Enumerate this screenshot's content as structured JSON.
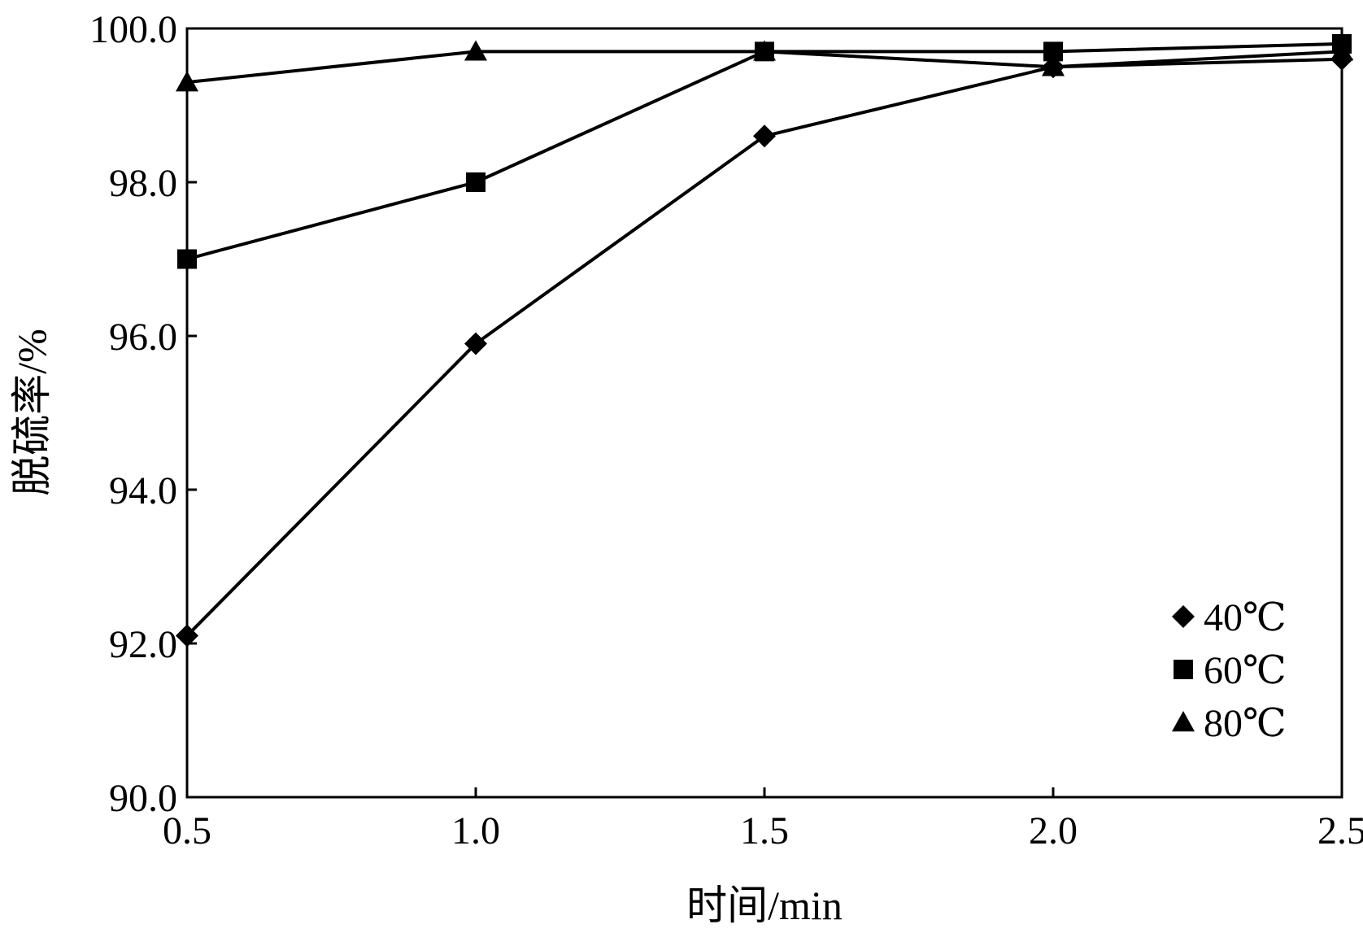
{
  "chart_data": {
    "type": "line",
    "title": "",
    "xlabel": "时间/min",
    "ylabel": "脱硫率/%",
    "xlim": [
      0.5,
      2.5
    ],
    "ylim": [
      90.0,
      100.0
    ],
    "xticks": [
      0.5,
      1.0,
      1.5,
      2.0,
      2.5
    ],
    "xtick_labels": [
      "0.5",
      "1.0",
      "1.5",
      "2.0",
      "2.5"
    ],
    "yticks": [
      90.0,
      92.0,
      94.0,
      96.0,
      98.0,
      100.0
    ],
    "ytick_labels": [
      "90.0",
      "92.0",
      "94.0",
      "96.0",
      "98.0",
      "100.0"
    ],
    "grid": false,
    "legend_position": "bottom-right",
    "x": [
      0.5,
      1.0,
      1.5,
      2.0,
      2.5
    ],
    "series": [
      {
        "name": "40℃",
        "marker": "diamond",
        "values": [
          92.1,
          95.9,
          98.6,
          99.5,
          99.6
        ]
      },
      {
        "name": "60℃",
        "marker": "square",
        "values": [
          97.0,
          98.0,
          99.7,
          99.7,
          99.8
        ]
      },
      {
        "name": "80℃",
        "marker": "triangle",
        "values": [
          99.3,
          99.7,
          99.7,
          99.5,
          99.7
        ]
      }
    ],
    "color": "#000000"
  }
}
